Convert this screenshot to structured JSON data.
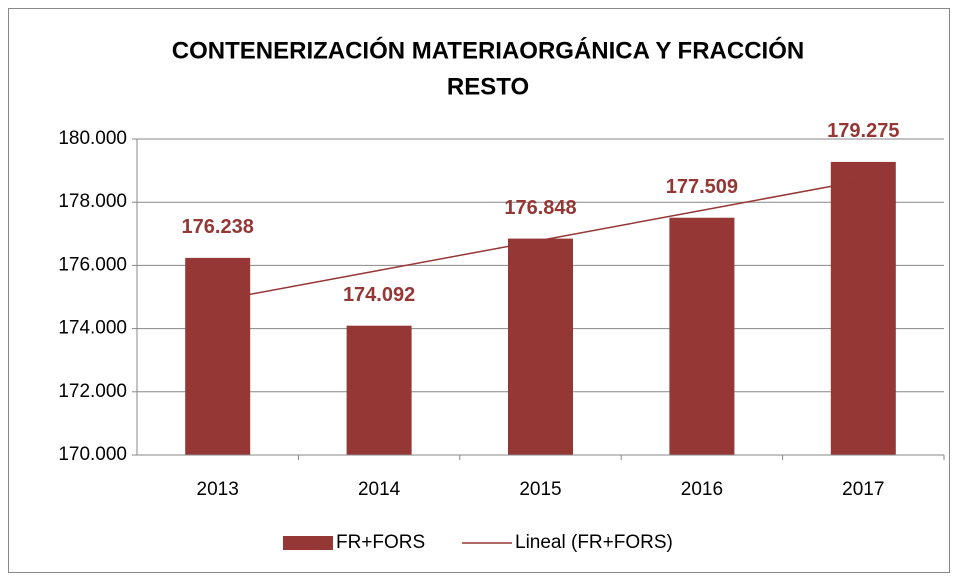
{
  "chart_data": {
    "type": "bar",
    "title": [
      "CONTENERIZACIÓN MATERIAORGÁNICA Y FRACCIÓN",
      "RESTO"
    ],
    "categories": [
      "2013",
      "2014",
      "2015",
      "2016",
      "2017"
    ],
    "series": [
      {
        "name": "FR+FORS",
        "type": "bar",
        "color": "#953735",
        "values": [
          176238,
          174092,
          176848,
          177509,
          179275
        ],
        "value_labels": [
          "176.238",
          "174.092",
          "176.848",
          "177.509",
          "179.275"
        ]
      },
      {
        "name": "Lineal (FR+FORS)",
        "type": "line",
        "color": "#953735",
        "values": [
          174894,
          175843,
          176792,
          177742,
          178691
        ]
      }
    ],
    "ylim": [
      170000,
      180000
    ],
    "yticks": [
      {
        "value": 170000,
        "label": "170.000"
      },
      {
        "value": 172000,
        "label": "172.000"
      },
      {
        "value": 174000,
        "label": "174.000"
      },
      {
        "value": 176000,
        "label": "176.000"
      },
      {
        "value": 178000,
        "label": "178.000"
      },
      {
        "value": 180000,
        "label": "180.000"
      }
    ],
    "grid": true,
    "legend": "bottom"
  }
}
